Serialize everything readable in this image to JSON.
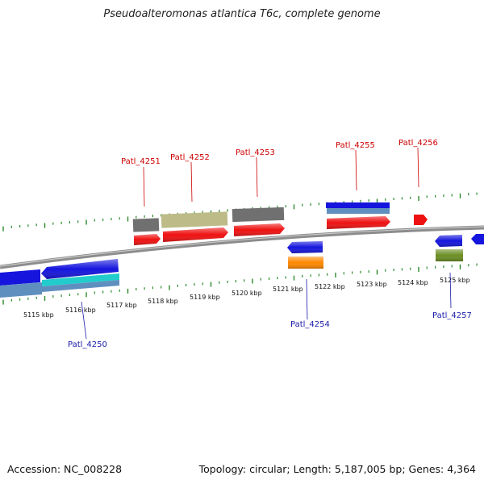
{
  "title": "Pseudoalteromonas atlantica T6c, complete genome",
  "footer": {
    "accession": "Accession: NC_008228",
    "summary": "Topology: circular; Length: 5,187,005 bp; Genes: 4,364"
  },
  "colors": {
    "background": "#ffffff",
    "backbone": "#8c8c8c",
    "tick": "#2a8a2a",
    "forward_label": "#cc0000",
    "reverse_label": "#1a1aaa"
  },
  "scale_labels": [
    "5115 kbp",
    "5116 kbp",
    "5117 kbp",
    "5118 kbp",
    "5119 kbp",
    "5120 kbp",
    "5121 kbp",
    "5122 kbp",
    "5123 kbp",
    "5124 kbp",
    "5125 kbp"
  ],
  "gene_labels": {
    "forward": [
      "Patl_4251",
      "Patl_4252",
      "Patl_4253",
      "Patl_4255",
      "Patl_4256"
    ],
    "reverse": [
      "Patl_4250",
      "Patl_4254",
      "Patl_4257"
    ]
  }
}
